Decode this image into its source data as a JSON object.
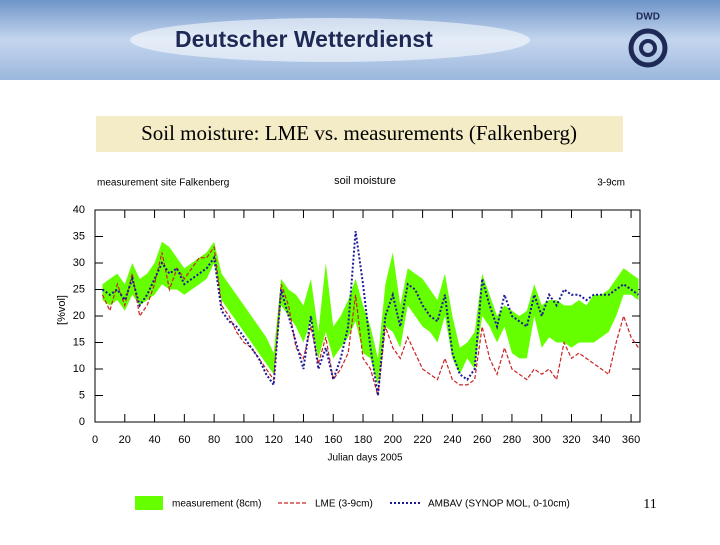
{
  "header": {
    "title": "Deutscher Wetterdienst",
    "logo": "DWD"
  },
  "slide_title": "Soil moisture: LME  vs. measurements (Falkenberg)",
  "page_number": "11",
  "chart_data": {
    "type": "line",
    "title": "soil moisture",
    "site_label": "measurement site Falkenberg",
    "depth_label": "3-9cm",
    "xlabel": "Julian days 2005",
    "ylabel": "[%vol]",
    "xlim": [
      0,
      366
    ],
    "ylim": [
      0,
      40
    ],
    "xticks": [
      0,
      20,
      40,
      60,
      80,
      100,
      120,
      140,
      160,
      180,
      200,
      220,
      240,
      260,
      280,
      300,
      320,
      340,
      360
    ],
    "yticks": [
      0,
      5,
      10,
      15,
      20,
      25,
      30,
      35,
      40
    ],
    "x": [
      5,
      10,
      15,
      20,
      25,
      30,
      35,
      40,
      45,
      50,
      55,
      60,
      65,
      70,
      75,
      80,
      85,
      90,
      95,
      100,
      105,
      110,
      115,
      120,
      125,
      130,
      135,
      140,
      145,
      150,
      155,
      160,
      165,
      170,
      175,
      180,
      185,
      190,
      195,
      200,
      205,
      210,
      215,
      220,
      225,
      230,
      235,
      240,
      245,
      250,
      255,
      260,
      265,
      270,
      275,
      280,
      285,
      290,
      295,
      300,
      305,
      310,
      315,
      320,
      325,
      330,
      335,
      340,
      345,
      350,
      355,
      360,
      365
    ],
    "series": [
      {
        "name": "measurement (8cm)",
        "color": "#66ff00",
        "type": "band",
        "low": [
          23,
          22,
          23,
          21,
          24,
          22,
          23,
          24,
          26,
          25,
          25,
          24,
          25,
          26,
          27,
          30,
          23,
          21,
          19,
          17,
          15,
          13,
          11,
          9,
          22,
          20,
          18,
          15,
          19,
          12,
          17,
          12,
          14,
          16,
          19,
          13,
          12,
          7,
          18,
          17,
          14,
          22,
          20,
          18,
          17,
          15,
          20,
          12,
          9,
          12,
          10,
          20,
          18,
          15,
          18,
          13,
          12,
          12,
          20,
          14,
          16,
          15,
          15,
          14,
          15,
          15,
          15,
          16,
          17,
          20,
          24,
          24,
          23
        ],
        "high": [
          26,
          27,
          28,
          26,
          30,
          27,
          28,
          30,
          34,
          33,
          31,
          29,
          30,
          31,
          32,
          34,
          28,
          26,
          24,
          22,
          20,
          18,
          16,
          13,
          27,
          25,
          24,
          22,
          27,
          17,
          30,
          18,
          20,
          23,
          27,
          22,
          18,
          12,
          26,
          32,
          22,
          29,
          28,
          27,
          25,
          23,
          28,
          20,
          14,
          15,
          17,
          28,
          24,
          20,
          22,
          21,
          20,
          21,
          26,
          22,
          23,
          23,
          22,
          22,
          23,
          22,
          24,
          24,
          25,
          27,
          29,
          28,
          27
        ]
      },
      {
        "name": "LME (3-9cm)",
        "color": "#cc2222",
        "dash": "dashed",
        "values": [
          24,
          21,
          26,
          22,
          28,
          20,
          22,
          26,
          32,
          25,
          29,
          27,
          29,
          31,
          31,
          33,
          22,
          20,
          17,
          15,
          14,
          12,
          10,
          8,
          26,
          22,
          14,
          12,
          18,
          11,
          16,
          8,
          10,
          13,
          24,
          12,
          10,
          5,
          18,
          14,
          12,
          16,
          13,
          10,
          9,
          8,
          12,
          8,
          7,
          7,
          8,
          18,
          12,
          9,
          14,
          10,
          9,
          8,
          10,
          9,
          10,
          8,
          15,
          12,
          13,
          12,
          11,
          10,
          9,
          15,
          20,
          16,
          14
        ]
      },
      {
        "name": "AMBAV (SYNOP MOL, 0-10cm)",
        "color": "#1a1a99",
        "dash": "dotted",
        "values": [
          25,
          24,
          25,
          23,
          27,
          22,
          24,
          27,
          30,
          28,
          29,
          26,
          27,
          28,
          29,
          31,
          21,
          19,
          18,
          16,
          14,
          12,
          9,
          7,
          25,
          20,
          15,
          10,
          20,
          10,
          14,
          8,
          12,
          18,
          36,
          26,
          14,
          5,
          20,
          24,
          18,
          26,
          25,
          22,
          20,
          19,
          24,
          13,
          9,
          8,
          10,
          27,
          22,
          18,
          24,
          20,
          19,
          18,
          24,
          20,
          24,
          22,
          25,
          24,
          24,
          23,
          24,
          24,
          24,
          25,
          26,
          25,
          24
        ]
      }
    ]
  }
}
